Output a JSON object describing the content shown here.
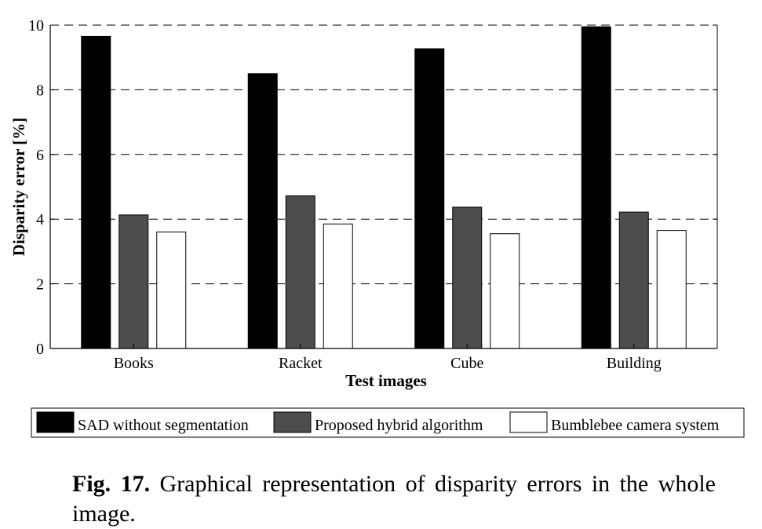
{
  "chart_data": {
    "type": "bar",
    "xlabel": "Test images",
    "ylabel": "Disparity error [%]",
    "categories": [
      "Books",
      "Racket",
      "Cube",
      "Building"
    ],
    "series": [
      {
        "name": "SAD without segmentation",
        "color": "#000000",
        "values": [
          9.65,
          8.5,
          9.27,
          9.95
        ]
      },
      {
        "name": "Proposed hybrid algorithm",
        "color": "#4d4d4d",
        "values": [
          4.13,
          4.72,
          4.37,
          4.22
        ]
      },
      {
        "name": "Bumblebee camera system",
        "color": "#ffffff",
        "values": [
          3.6,
          3.85,
          3.55,
          3.65
        ]
      }
    ],
    "ylim": [
      0,
      10
    ],
    "yticks": [
      0,
      2,
      4,
      6,
      8,
      10
    ],
    "grid": "horizontal dashed",
    "legend_position": "bottom"
  },
  "caption": {
    "label": "Fig. 17.",
    "text": "Graphical representation of disparity errors in the whole image."
  }
}
